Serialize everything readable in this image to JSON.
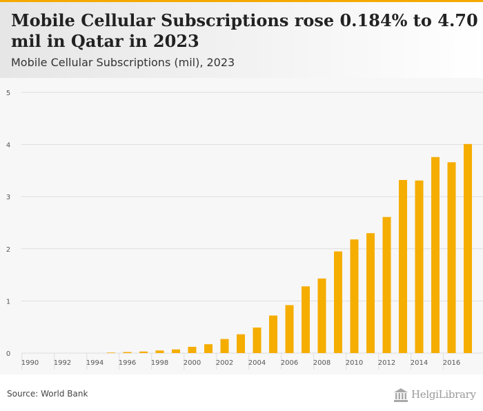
{
  "header": {
    "title": "Mobile Cellular Subscriptions rose 0.184% to 4.70 mil in Qatar in 2023",
    "subtitle": "Mobile Cellular Subscriptions (mil), 2023"
  },
  "footer": {
    "source": "Source: World Bank",
    "logo": "HelgiLibrary"
  },
  "colors": {
    "accent": "#f5a800",
    "bar": "#f5ad00",
    "grid": "#dedede",
    "axis_text": "#555555"
  },
  "chart_data": {
    "type": "bar",
    "title": "Mobile Cellular Subscriptions (mil)",
    "xlabel": "",
    "ylabel": "",
    "ylim": [
      0,
      5
    ],
    "yticks": [
      "0",
      "1",
      "2",
      "3",
      "4",
      "5"
    ],
    "categories": [
      "1990",
      "1991",
      "1992",
      "1993",
      "1994",
      "1995",
      "1996",
      "1997",
      "1998",
      "1999",
      "2000",
      "2001",
      "2002",
      "2003",
      "2004",
      "2005",
      "2006",
      "2007",
      "2008",
      "2009",
      "2010",
      "2011",
      "2012",
      "2013",
      "2014",
      "2015",
      "2016",
      "2017"
    ],
    "xtick_labels": [
      "1990",
      "1992",
      "1994",
      "1996",
      "1998",
      "2000",
      "2002",
      "2004",
      "2006",
      "2008",
      "2010",
      "2012",
      "2014",
      "2016"
    ],
    "values": [
      0,
      0,
      0,
      0,
      0,
      0.01,
      0.02,
      0.03,
      0.05,
      0.07,
      0.12,
      0.17,
      0.27,
      0.36,
      0.49,
      0.72,
      0.92,
      1.28,
      1.43,
      1.95,
      2.18,
      2.3,
      2.61,
      3.32,
      3.31,
      3.76,
      3.66,
      4.01
    ],
    "grid": true
  }
}
